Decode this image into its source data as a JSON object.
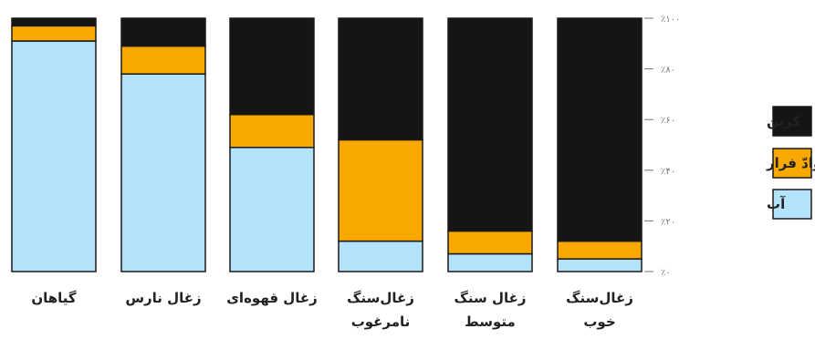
{
  "chart_data": {
    "type": "bar",
    "stacked": true,
    "orientation": "vertical",
    "categories": [
      [
        "گیاهان"
      ],
      [
        "زغال نارس"
      ],
      [
        "زغال قهوه‌ای"
      ],
      [
        "زغال‌سنگ",
        "نامرغوب"
      ],
      [
        "زغال سنگ",
        "متوسط"
      ],
      [
        "زغال‌سنگ",
        "خوب"
      ]
    ],
    "series": [
      {
        "name": "آب",
        "color": "#b3e3fb",
        "values": [
          91,
          78,
          49,
          12,
          7,
          5
        ]
      },
      {
        "name": "موادّ فرار",
        "color": "#f8a800",
        "values": [
          6,
          11,
          13,
          40,
          9,
          7
        ]
      },
      {
        "name": "کربن",
        "color": "#151515",
        "values": [
          3,
          11,
          38,
          48,
          84,
          88
        ]
      }
    ],
    "yaxis": {
      "range": [
        0,
        100
      ],
      "ticks": [
        0,
        20,
        40,
        60,
        80,
        100
      ],
      "tick_labels": [
        "٪۰",
        "٪۲۰",
        "٪۴۰",
        "٪۶۰",
        "٪۸۰",
        "٪۱۰۰"
      ],
      "position": "right"
    },
    "legend": {
      "placement": "right",
      "order": [
        "کربن",
        "موادّ فرار",
        "آب"
      ]
    },
    "grid": false
  }
}
